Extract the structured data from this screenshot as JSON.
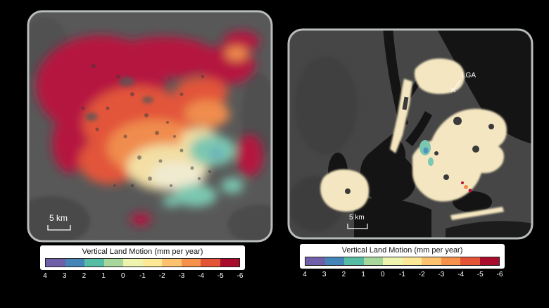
{
  "figure": {
    "description": "Two vertical land motion maps with shared color scale"
  },
  "colorbar": {
    "title": "Vertical Land Motion (mm per year)",
    "ticks": [
      "4",
      "3",
      "2",
      "1",
      "0",
      "-1",
      "-2",
      "-3",
      "-4",
      "-5",
      "-6"
    ],
    "segments": [
      "#6f5fa9",
      "#4584b6",
      "#56bca4",
      "#a8d79b",
      "#eef3ae",
      "#fde995",
      "#fdc26e",
      "#f6914b",
      "#e25435",
      "#a80b2c"
    ]
  },
  "maps": [
    {
      "name": "regional-subsidence-map",
      "scale_label": "5 km"
    },
    {
      "name": "new-york-city-map",
      "scale_label": "5 km",
      "annotation": "LGA"
    }
  ],
  "colors": {
    "page_background": "#000000",
    "panel_border": "#b9bcbc",
    "left_map_bg": "#585858",
    "right_map_bg": "#464646",
    "water_dark": "#141414",
    "land_cream": "#f4e6c0",
    "crimson": "#b5123f",
    "red_orange": "#e2553a",
    "orange": "#f08c4e",
    "pale_yellow": "#f3dfa4",
    "cream": "#f0ead0",
    "teal": "#7cc7b0",
    "blue_spot": "#4f93c4",
    "colorbar_bg": "#ffffff",
    "tick_text": "#ffffff",
    "title_text": "#111111"
  }
}
